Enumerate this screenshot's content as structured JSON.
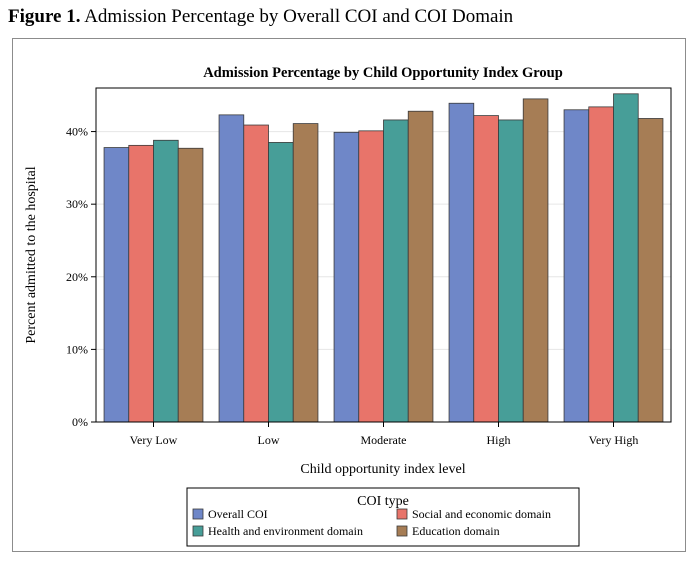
{
  "figure": {
    "label": "Figure 1.",
    "caption": "Admission Percentage by Overall COI and COI Domain"
  },
  "chart_data": {
    "type": "bar",
    "title": "Admission Percentage by Child Opportunity Index Group",
    "xlabel": "Child opportunity index level",
    "ylabel": "Percent admitted to the hospital",
    "categories": [
      "Very Low",
      "Low",
      "Moderate",
      "High",
      "Very High"
    ],
    "ylim": [
      0,
      46
    ],
    "yticks": [
      0,
      10,
      20,
      30,
      40
    ],
    "ytick_labels": [
      "0%",
      "10%",
      "20%",
      "30%",
      "40%"
    ],
    "grid": "horizontal",
    "legend": {
      "title": "COI type",
      "position": "bottom"
    },
    "series": [
      {
        "name": "Overall COI",
        "color": "#6f87c8",
        "values": [
          37.8,
          42.3,
          39.9,
          43.9,
          43.0
        ]
      },
      {
        "name": "Social and economic domain",
        "color": "#e8746a",
        "values": [
          38.1,
          40.9,
          40.1,
          42.2,
          43.4
        ]
      },
      {
        "name": "Health and environment domain",
        "color": "#479e98",
        "values": [
          38.8,
          38.5,
          41.6,
          41.6,
          45.2
        ]
      },
      {
        "name": "Education domain",
        "color": "#a67d55",
        "values": [
          37.7,
          41.1,
          42.8,
          44.5,
          41.8
        ]
      }
    ]
  }
}
